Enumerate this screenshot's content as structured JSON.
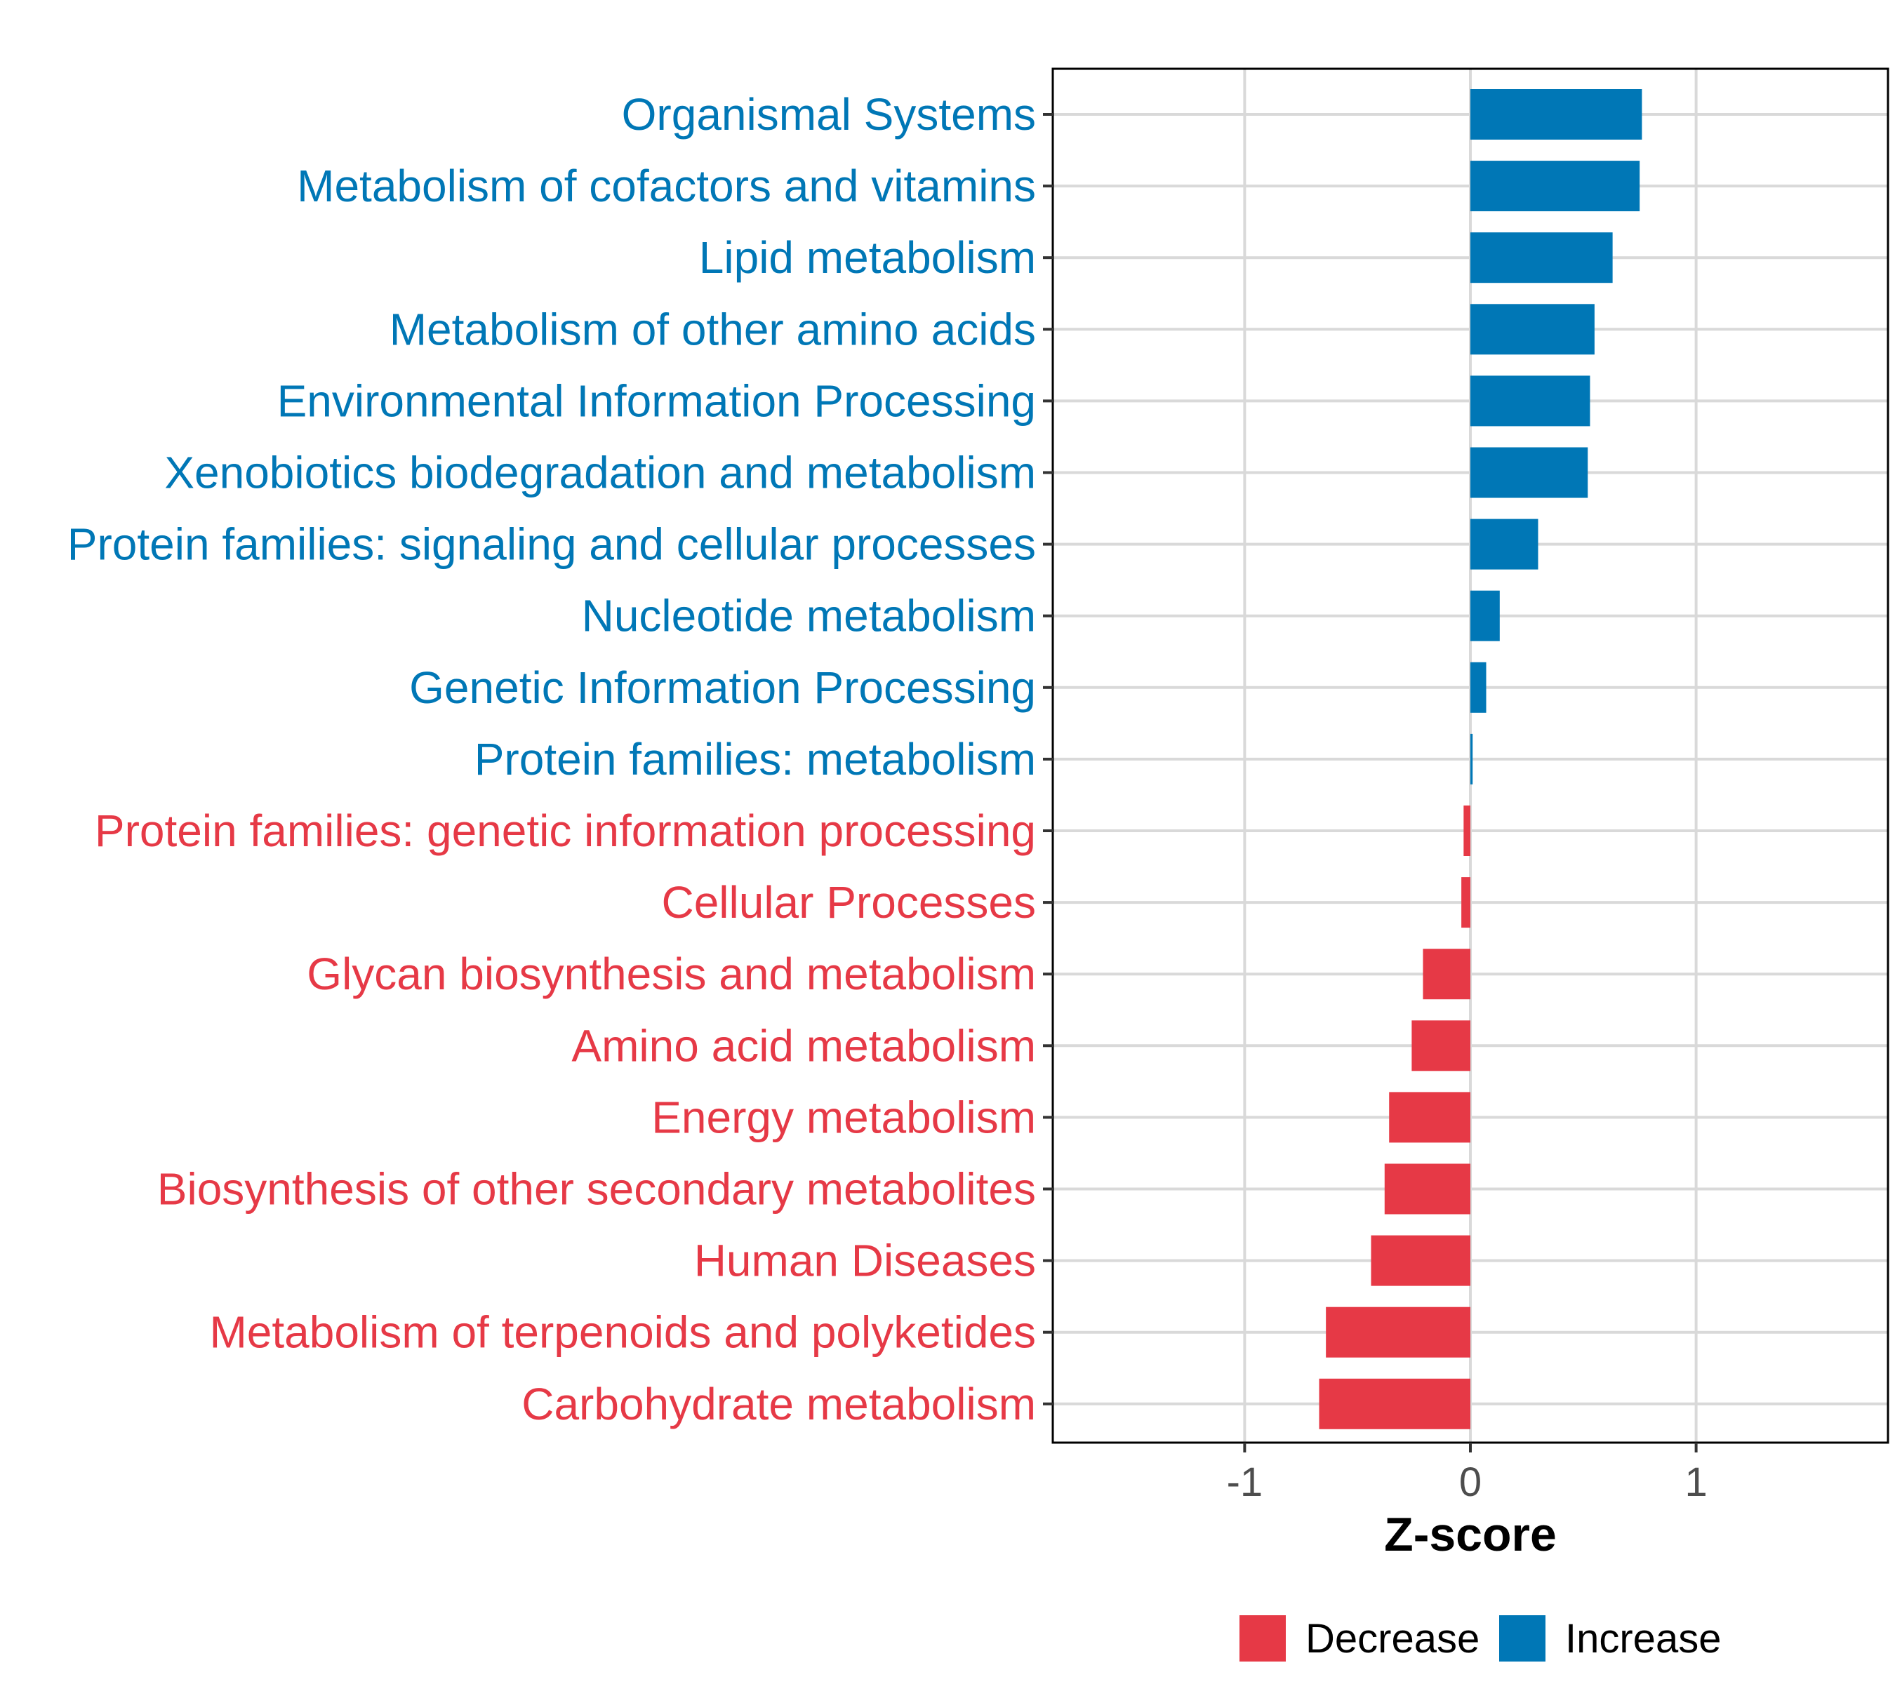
{
  "chart_data": {
    "type": "bar",
    "orientation": "horizontal",
    "xlabel": "Z-score",
    "ylabel": "",
    "xlim": [
      -1.85,
      1.85
    ],
    "x_ticks": [
      -1,
      0,
      1
    ],
    "x_tick_labels": [
      "-1",
      "0",
      "1"
    ],
    "grid": true,
    "legend_position": "bottom",
    "colors": {
      "Decrease": "#e63946",
      "Increase": "#0077b6"
    },
    "legend": [
      {
        "name": "Decrease",
        "color": "#e63946"
      },
      {
        "name": "Increase",
        "color": "#0077b6"
      }
    ],
    "categories": [
      "Organismal Systems",
      "Metabolism of cofactors and vitamins",
      "Lipid metabolism",
      "Metabolism of other amino acids",
      "Environmental Information Processing",
      "Xenobiotics biodegradation and metabolism",
      "Protein families: signaling and cellular processes",
      "Nucleotide metabolism",
      "Genetic Information Processing",
      "Protein families: metabolism",
      "Protein families: genetic information processing",
      "Cellular Processes",
      "Glycan biosynthesis and metabolism",
      "Amino acid metabolism",
      "Energy metabolism",
      "Biosynthesis of other secondary metabolites",
      "Human Diseases",
      "Metabolism of terpenoids and polyketides",
      "Carbohydrate metabolism"
    ],
    "values": [
      0.76,
      0.75,
      0.63,
      0.55,
      0.53,
      0.52,
      0.3,
      0.13,
      0.07,
      0.01,
      -0.03,
      -0.04,
      -0.21,
      -0.26,
      -0.36,
      -0.38,
      -0.44,
      -0.64,
      -0.67
    ],
    "groups": [
      "Increase",
      "Increase",
      "Increase",
      "Increase",
      "Increase",
      "Increase",
      "Increase",
      "Increase",
      "Increase",
      "Increase",
      "Decrease",
      "Decrease",
      "Decrease",
      "Decrease",
      "Decrease",
      "Decrease",
      "Decrease",
      "Decrease",
      "Decrease"
    ]
  }
}
